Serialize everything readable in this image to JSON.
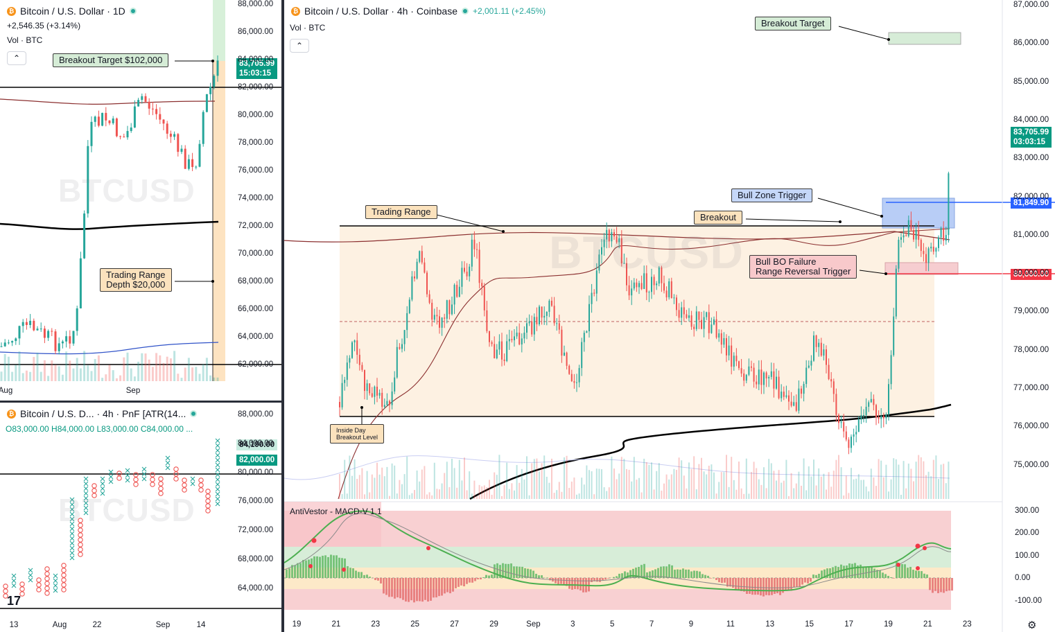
{
  "left_top": {
    "title": "Bitcoin / U.S. Dollar · 1D",
    "change": "+2,546.35 (+3.14%)",
    "volume_label": "Vol · BTC",
    "price_tag": "83,705.99",
    "price_timer": "15:03:15",
    "y_ticks": [
      "88,000.00",
      "86,000.00",
      "84,000.00",
      "82,000.00",
      "80,000.00",
      "78,000.00",
      "76,000.00",
      "74,000.00",
      "72,000.00",
      "70,000.00",
      "68,000.00",
      "66,000.00",
      "64,000.00",
      "62,000.00"
    ],
    "x_ticks": [
      "Aug",
      "Sep"
    ],
    "note_breakout": "Breakout Target $102,000",
    "note_range_1": "Trading Range",
    "note_range_2": "Depth $20,000",
    "watermark": "BTCUSD"
  },
  "left_bottom": {
    "title": "Bitcoin / U.S. D... · 4h · PnF [ATR(14...",
    "ohlc": "O83,000.00 H84,000.00 L83,000.00 C84,000.00 ...",
    "tag_high": "84,190.00",
    "tag_price": "82,000.00",
    "y_ticks": [
      "88,000.00",
      "84,000.00",
      "80,000.00",
      "76,000.00",
      "72,000.00",
      "68,000.00",
      "64,000.00"
    ],
    "x_ticks": [
      "13",
      "Aug",
      "22",
      "Sep",
      "14"
    ],
    "watermark": "BTCUSD"
  },
  "main": {
    "title": "Bitcoin / U.S. Dollar · 4h · Coinbase",
    "change": "+2,001.11 (+2.45%)",
    "volume_label": "Vol · BTC",
    "price_tag": "83,705.99",
    "price_timer": "03:03:15",
    "tag_bull": "81,849.90",
    "tag_bear": "80,000.00",
    "y_ticks": [
      "87,000.00",
      "86,000.00",
      "85,000.00",
      "84,000.00",
      "83,000.00",
      "82,000.00",
      "81,000.00",
      "80,000.00",
      "79,000.00",
      "78,000.00",
      "77,000.00",
      "76,000.00",
      "75,000.00"
    ],
    "x_ticks": [
      "19",
      "21",
      "23",
      "25",
      "27",
      "29",
      "Sep",
      "3",
      "5",
      "7",
      "9",
      "11",
      "13",
      "15",
      "17",
      "19",
      "21",
      "23"
    ],
    "notes": {
      "breakout_target": "Breakout Target",
      "trading_range": "Trading Range",
      "breakout": "Breakout",
      "bull_zone": "Bull Zone Trigger",
      "bull_failure_1": "Bull BO Failure",
      "bull_failure_2": "Range Reversal Trigger",
      "inside_day_1": "Inside Day",
      "inside_day_2": "Breakout Level"
    },
    "watermark": "BTCUSD"
  },
  "macd": {
    "title": "AntiVestor - MACD-V 1.1",
    "y_ticks": [
      "300.00",
      "200.00",
      "100.00",
      "0.00",
      "-100.00"
    ]
  },
  "colors": {
    "up": "#26a69a",
    "down": "#ef5350",
    "accent_green": "#089981",
    "bull_line": "#2962ff",
    "bear_line": "#f23645"
  }
}
